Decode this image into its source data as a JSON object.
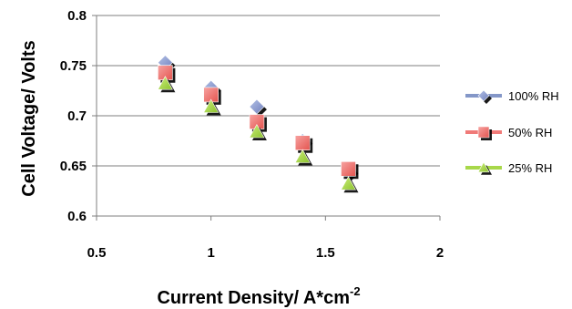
{
  "chart_data": {
    "type": "scatter",
    "xlabel": "Current Density/ A*cm",
    "xlabel_superscript": "-2",
    "ylabel": "Cell Voltage/ Volts",
    "xlim": [
      0.5,
      2
    ],
    "ylim": [
      0.6,
      0.8
    ],
    "xticks": [
      "0.5",
      "1",
      "1.5",
      "2"
    ],
    "yticks": [
      "0.6",
      "0.65",
      "0.7",
      "0.75",
      "0.8"
    ],
    "grid": "horizontal",
    "legend_position": "right",
    "series": [
      {
        "name": "100% RH",
        "marker": "diamond",
        "color": "#8497c8",
        "x": [
          0.8,
          1.0,
          1.2,
          1.4,
          1.6
        ],
        "y": [
          0.753,
          0.728,
          0.709,
          0.675,
          0.645
        ]
      },
      {
        "name": "50% RH",
        "marker": "square",
        "color": "#f07a78",
        "x": [
          0.8,
          1.0,
          1.2,
          1.4,
          1.6
        ],
        "y": [
          0.743,
          0.721,
          0.694,
          0.673,
          0.647
        ]
      },
      {
        "name": "25% RH",
        "marker": "triangle",
        "color": "#a8d84a",
        "x": [
          0.8,
          1.0,
          1.2,
          1.4,
          1.6
        ],
        "y": [
          0.732,
          0.709,
          0.684,
          0.659,
          0.632
        ]
      }
    ]
  }
}
